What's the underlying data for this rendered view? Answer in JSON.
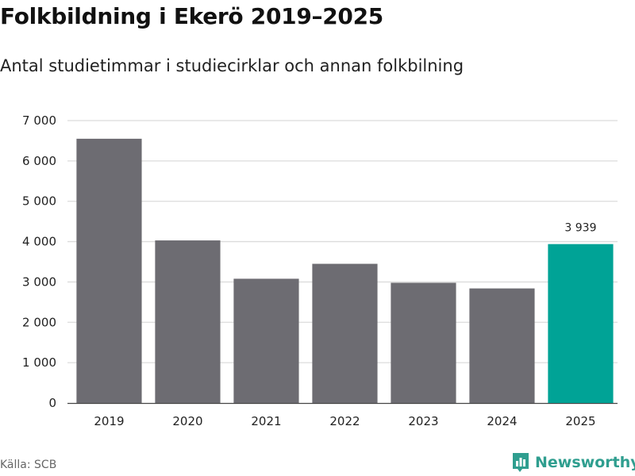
{
  "header": {
    "title": "Folkbildning i Ekerö 2019–2025",
    "subtitle": "Antal studietimmar i studiecirklar och annan folkbilning"
  },
  "footer": {
    "source": "Källa: SCB",
    "brand": "Newsworthy",
    "brand_icon": "bar-chart-logo-icon",
    "brand_color": "#2f9e8f"
  },
  "chart_data": {
    "type": "bar",
    "categories": [
      "2019",
      "2020",
      "2021",
      "2022",
      "2023",
      "2024",
      "2025"
    ],
    "values": [
      6550,
      4030,
      3080,
      3450,
      2980,
      2840,
      3939
    ],
    "ylim": [
      0,
      7000
    ],
    "yticks": [
      0,
      1000,
      2000,
      3000,
      4000,
      5000,
      6000,
      7000
    ],
    "ytick_labels": [
      "0",
      "1 000",
      "2 000",
      "3 000",
      "4 000",
      "5 000",
      "6 000",
      "7 000"
    ],
    "data_labels": [
      {
        "index": 6,
        "text": "3 939"
      }
    ],
    "bar_color": "#6d6c72",
    "highlight_color": "#00a396",
    "highlight_index": 6,
    "grid": true,
    "legend": false
  }
}
